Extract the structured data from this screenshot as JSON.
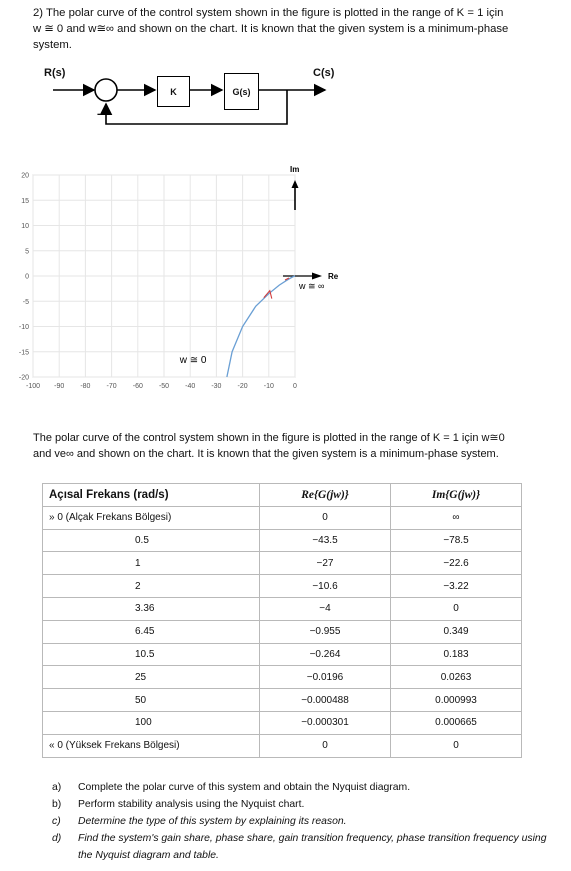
{
  "question": {
    "line1": "2) The polar curve of the control system shown in the figure is plotted in the range of K = 1 için",
    "line2": "w ≅ 0 and  w≅∞  and shown on the chart. It is known that the given system is a minimum-phase",
    "line3": "system."
  },
  "diagram": {
    "input_label": "R(s)",
    "output_label": "C(s)",
    "block1": "K",
    "block2": "G(s)",
    "feedback_sign": "-"
  },
  "chart": {
    "y_axis_name": "Im",
    "x_axis_name": "Re",
    "low_freq_annotation": "w ≅ 0",
    "high_freq_annotation": "w ≅ ∞"
  },
  "chart_data": {
    "type": "line",
    "title": "",
    "xlabel": "Re",
    "ylabel": "Im",
    "xlim": [
      -100,
      0
    ],
    "ylim": [
      -20,
      20
    ],
    "xticks": [
      "-100",
      "-90",
      "-80",
      "-70",
      "-60",
      "-50",
      "-40",
      "-30",
      "-20",
      "-10",
      "0"
    ],
    "yticks": [
      "20",
      "15",
      "10",
      "5",
      "0",
      "-5",
      "-10",
      "-15",
      "-20"
    ],
    "grid": true,
    "series": [
      {
        "x": [
          -26,
          -24,
          -20,
          -15,
          -10,
          -6,
          -3,
          -1,
          -0.3,
          0
        ],
        "y": [
          -20,
          -15,
          -10,
          -6,
          -3.5,
          -1.8,
          -0.8,
          -0.2,
          -0.05,
          0
        ]
      }
    ]
  },
  "paragraph": {
    "line1": "The polar curve of the control system shown in the figure is plotted in the range of K = 1 için w≅0",
    "line2": "and ve∞ and shown on the chart. It is known that the given system is a minimum-phase system."
  },
  "table": {
    "headers": [
      "Açısal Frekans (rad/s)",
      "Re{G(jw)}",
      "Im{G(jw)}"
    ],
    "top_row": [
      "» 0 (Alçak Frekans Bölgesi)",
      "0",
      "∞"
    ],
    "rows": [
      [
        "0.5",
        "−43.5",
        "−78.5"
      ],
      [
        "1",
        "−27",
        "−22.6"
      ],
      [
        "2",
        "−10.6",
        "−3.22"
      ],
      [
        "3.36",
        "−4",
        "0"
      ],
      [
        "6.45",
        "−0.955",
        "0.349"
      ],
      [
        "10.5",
        "−0.264",
        "0.183"
      ],
      [
        "25",
        "−0.0196",
        "0.0263"
      ],
      [
        "50",
        "−0.000488",
        "0.000993"
      ],
      [
        "100",
        "−0.000301",
        "0.000665"
      ]
    ],
    "bottom_row": [
      "« 0 (Yüksek Frekans Bölgesi)",
      "0",
      "0"
    ]
  },
  "tasks": [
    {
      "label": "a)",
      "text": "Complete the polar curve of this system and obtain the Nyquist diagram."
    },
    {
      "label": "b)",
      "text": "Perform stability analysis using the Nyquist chart."
    },
    {
      "label": "c)",
      "text": "Determine the type of this system by explaining its reason."
    },
    {
      "label": "d)",
      "text": "Find the system's gain share, phase share, gain transition frequency, phase transition frequency using the Nyquist diagram and table."
    }
  ]
}
